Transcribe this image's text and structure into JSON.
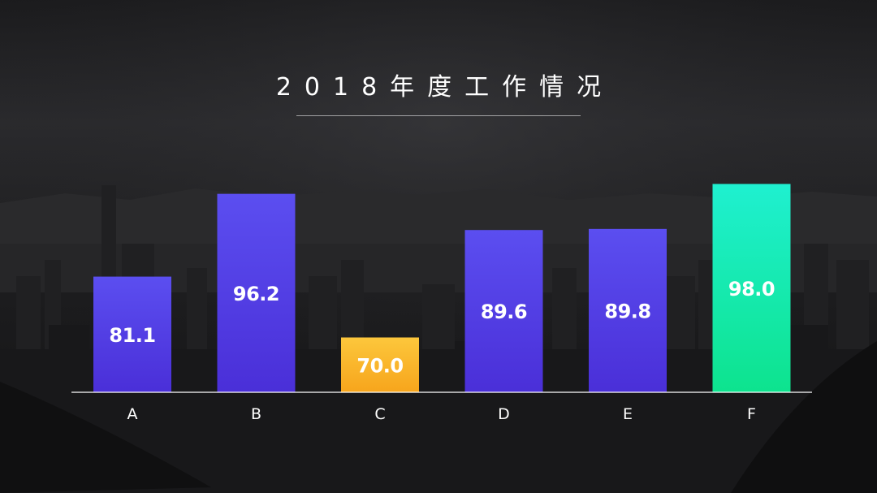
{
  "title": "2018年度工作情况",
  "chart_data": {
    "type": "bar",
    "title": "2018年度工作情况",
    "xlabel": "",
    "ylabel": "",
    "categories": [
      "A",
      "B",
      "C",
      "D",
      "E",
      "F"
    ],
    "values": [
      81.1,
      96.2,
      70.0,
      89.6,
      89.8,
      98.0
    ],
    "value_labels": [
      "81.1",
      "96.2",
      "70.0",
      "89.6",
      "89.8",
      "98.0"
    ],
    "ylim": [
      60,
      100
    ],
    "grid": false,
    "legend": "none",
    "colors": {
      "default": [
        "#5b4ef0",
        "#4a2fd8"
      ],
      "C": [
        "#fcc73c",
        "#f7a51c"
      ],
      "F": [
        "#1ff0d0",
        "#0de38e"
      ],
      "axis": "#ffffff"
    }
  }
}
